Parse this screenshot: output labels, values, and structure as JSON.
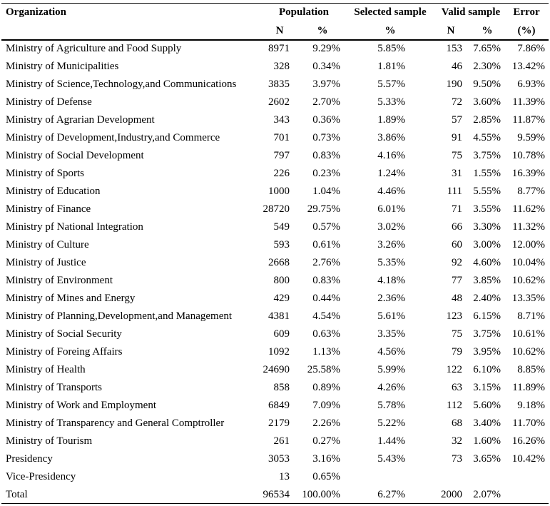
{
  "table": {
    "header": [
      "Organization",
      "Population",
      "Selected sample",
      "Valid sample",
      "Error"
    ],
    "subheader": [
      "N",
      "%",
      "%",
      "N",
      "%",
      "(%)"
    ],
    "rows": [
      [
        "Ministry of Agriculture and Food Supply",
        "8971",
        "9.29%",
        "5.85%",
        "153",
        "7.65%",
        "7.86%"
      ],
      [
        "Ministry of Municipalities",
        "328",
        "0.34%",
        "1.81%",
        "46",
        "2.30%",
        "13.42%"
      ],
      [
        "Ministry of Science,Technology,and Communications",
        "3835",
        "3.97%",
        "5.57%",
        "190",
        "9.50%",
        "6.93%"
      ],
      [
        "Ministry of Defense",
        "2602",
        "2.70%",
        "5.33%",
        "72",
        "3.60%",
        "11.39%"
      ],
      [
        "Ministry of Agrarian Development",
        "343",
        "0.36%",
        "1.89%",
        "57",
        "2.85%",
        "11.87%"
      ],
      [
        "Ministry of Development,Industry,and Commerce",
        "701",
        "0.73%",
        "3.86%",
        "91",
        "4.55%",
        "9.59%"
      ],
      [
        "Ministry of Social Development",
        "797",
        "0.83%",
        "4.16%",
        "75",
        "3.75%",
        "10.78%"
      ],
      [
        "Ministry of Sports",
        "226",
        "0.23%",
        "1.24%",
        "31",
        "1.55%",
        "16.39%"
      ],
      [
        "Ministry of Education",
        "1000",
        "1.04%",
        "4.46%",
        "111",
        "5.55%",
        "8.77%"
      ],
      [
        "Ministry of Finance",
        "28720",
        "29.75%",
        "6.01%",
        "71",
        "3.55%",
        "11.62%"
      ],
      [
        "Ministry pf National Integration",
        "549",
        "0.57%",
        "3.02%",
        "66",
        "3.30%",
        "11.32%"
      ],
      [
        "Ministry of Culture",
        "593",
        "0.61%",
        "3.26%",
        "60",
        "3.00%",
        "12.00%"
      ],
      [
        "Ministry of Justice",
        "2668",
        "2.76%",
        "5.35%",
        "92",
        "4.60%",
        "10.04%"
      ],
      [
        "Ministry of Environment",
        "800",
        "0.83%",
        "4.18%",
        "77",
        "3.85%",
        "10.62%"
      ],
      [
        "Ministry of Mines and Energy",
        "429",
        "0.44%",
        "2.36%",
        "48",
        "2.40%",
        "13.35%"
      ],
      [
        "Ministry of Planning,Development,and Management",
        "4381",
        "4.54%",
        "5.61%",
        "123",
        "6.15%",
        "8.71%"
      ],
      [
        "Ministry of Social Security",
        "609",
        "0.63%",
        "3.35%",
        "75",
        "3.75%",
        "10.61%"
      ],
      [
        "Ministry of Foreing Affairs",
        "1092",
        "1.13%",
        "4.56%",
        "79",
        "3.95%",
        "10.62%"
      ],
      [
        "Ministry of Health",
        "24690",
        "25.58%",
        "5.99%",
        "122",
        "6.10%",
        "8.85%"
      ],
      [
        "Ministry of Transports",
        "858",
        "0.89%",
        "4.26%",
        "63",
        "3.15%",
        "11.89%"
      ],
      [
        "Ministry of Work and Employment",
        "6849",
        "7.09%",
        "5.78%",
        "112",
        "5.60%",
        "9.18%"
      ],
      [
        "Ministry of Transparency and General Comptroller",
        "2179",
        "2.26%",
        "5.22%",
        "68",
        "3.40%",
        "11.70%"
      ],
      [
        "Ministry of Tourism",
        "261",
        "0.27%",
        "1.44%",
        "32",
        "1.60%",
        "16.26%"
      ],
      [
        "Presidency",
        "3053",
        "3.16%",
        "5.43%",
        "73",
        "3.65%",
        "10.42%"
      ],
      [
        "Vice-Presidency",
        "13",
        "0.65%",
        null,
        null,
        null,
        null
      ],
      [
        "Total",
        "96534",
        "100.00%",
        "6.27%",
        "2000",
        "2.07%",
        null
      ]
    ]
  }
}
